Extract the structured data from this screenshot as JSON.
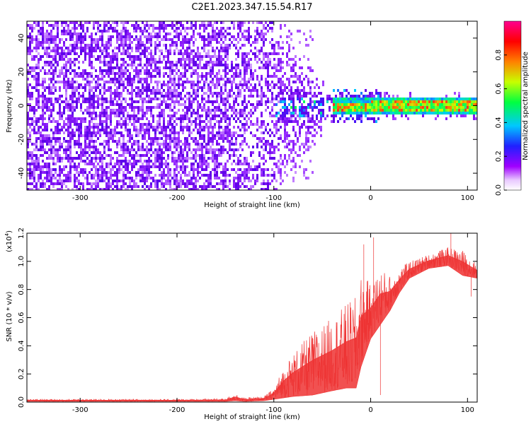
{
  "title": "C2E1.2023.347.15.54.R17",
  "chart_data": [
    {
      "type": "heatmap",
      "xlabel": "Height of straight line (km)",
      "ylabel": "Frequency (Hz)",
      "xlim": [
        -355,
        110
      ],
      "ylim": [
        -50,
        50
      ],
      "xticks": [
        -300,
        -200,
        -100,
        0,
        100
      ],
      "yticks": [
        -40,
        -20,
        0,
        20,
        40
      ],
      "colorbar": {
        "label": "Normalized spectral amplitude",
        "range": [
          0,
          1
        ],
        "ticks": [
          "0.0",
          "0.2",
          "0.4",
          "0.6",
          "0.8"
        ],
        "colors": [
          "#ffffff",
          "#a000ff",
          "#2020ff",
          "#00c8ff",
          "#00ff40",
          "#c8ff00",
          "#ff8000",
          "#ff0000",
          "#ff0090"
        ]
      },
      "features": {
        "noise_region_x": [
          -355,
          -100
        ],
        "signal_line_y": 0,
        "signal_start_x": -80
      }
    },
    {
      "type": "line",
      "xlabel": "Height of straight line (km)",
      "ylabel": "SNR (10 * v/v)",
      "scale_label": "(x10",
      "scale_exp": "4",
      "scale_close": ")",
      "xlim": [
        -355,
        110
      ],
      "ylim": [
        0,
        1.2
      ],
      "xticks": [
        -300,
        -200,
        -100,
        0,
        100
      ],
      "yticks": [
        "0.0",
        "0.2",
        "0.4",
        "0.6",
        "0.8",
        "1.0",
        "1.2"
      ],
      "series": [
        {
          "color": "#ee3333",
          "envelope": [
            {
              "x": -355,
              "lo": 0.005,
              "hi": 0.02
            },
            {
              "x": -200,
              "lo": 0.005,
              "hi": 0.02
            },
            {
              "x": -150,
              "lo": 0.005,
              "hi": 0.025
            },
            {
              "x": -140,
              "lo": 0.01,
              "hi": 0.06
            },
            {
              "x": -130,
              "lo": 0.005,
              "hi": 0.03
            },
            {
              "x": -110,
              "lo": 0.01,
              "hi": 0.04
            },
            {
              "x": -100,
              "lo": 0.02,
              "hi": 0.1
            },
            {
              "x": -90,
              "lo": 0.03,
              "hi": 0.25
            },
            {
              "x": -80,
              "lo": 0.04,
              "hi": 0.35
            },
            {
              "x": -60,
              "lo": 0.05,
              "hi": 0.5
            },
            {
              "x": -40,
              "lo": 0.08,
              "hi": 0.6
            },
            {
              "x": -25,
              "lo": 0.1,
              "hi": 0.7
            },
            {
              "x": -15,
              "lo": 0.1,
              "hi": 0.75
            },
            {
              "x": -10,
              "lo": 0.25,
              "hi": 0.9
            },
            {
              "x": 0,
              "lo": 0.45,
              "hi": 0.85
            },
            {
              "x": 10,
              "lo": 0.55,
              "hi": 0.95
            },
            {
              "x": 20,
              "lo": 0.65,
              "hi": 0.9
            },
            {
              "x": 30,
              "lo": 0.78,
              "hi": 0.95
            },
            {
              "x": 40,
              "lo": 0.88,
              "hi": 1.0
            },
            {
              "x": 60,
              "lo": 0.95,
              "hi": 1.05
            },
            {
              "x": 80,
              "lo": 0.97,
              "hi": 1.1
            },
            {
              "x": 95,
              "lo": 0.9,
              "hi": 1.08
            },
            {
              "x": 110,
              "lo": 0.88,
              "hi": 0.98
            }
          ],
          "spikes": [
            {
              "x": -7,
              "y": 1.12
            },
            {
              "x": 3,
              "y": 1.17
            },
            {
              "x": 10,
              "y": 0.05
            },
            {
              "x": 83,
              "y": 1.2
            },
            {
              "x": 104,
              "y": 0.75
            }
          ]
        }
      ]
    }
  ]
}
